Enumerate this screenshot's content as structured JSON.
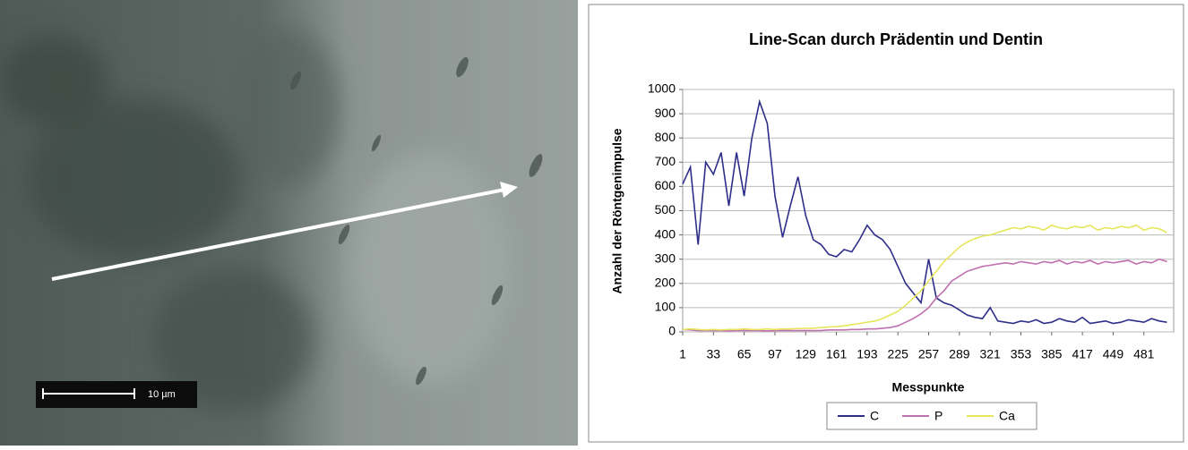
{
  "image": {
    "scale_label": "10 µm"
  },
  "chart_data": {
    "type": "line",
    "title": "Line-Scan durch Prädentin und Dentin",
    "x_label": "Messpunkte",
    "y_label": "Anzahl der Röntgenimpulse",
    "x": [
      1,
      9,
      17,
      25,
      33,
      41,
      49,
      57,
      65,
      73,
      81,
      89,
      97,
      105,
      113,
      121,
      129,
      137,
      145,
      153,
      161,
      169,
      177,
      185,
      193,
      201,
      209,
      217,
      225,
      233,
      241,
      249,
      257,
      265,
      273,
      281,
      289,
      297,
      305,
      313,
      321,
      329,
      337,
      345,
      353,
      361,
      369,
      377,
      385,
      393,
      401,
      409,
      417,
      425,
      433,
      441,
      449,
      457,
      465,
      473,
      481,
      489,
      497,
      505
    ],
    "series": [
      {
        "name": "C",
        "color": "#2e2e8a",
        "values": [
          610,
          680,
          360,
          700,
          650,
          740,
          520,
          740,
          560,
          800,
          950,
          860,
          560,
          390,
          520,
          640,
          480,
          380,
          360,
          320,
          310,
          340,
          330,
          380,
          440,
          400,
          380,
          340,
          270,
          200,
          160,
          120,
          300,
          140,
          120,
          110,
          90,
          70,
          60,
          55,
          100,
          45,
          40,
          35,
          45,
          40,
          50,
          35,
          40,
          55,
          45,
          40,
          60,
          35,
          40,
          45,
          35,
          40,
          50,
          45,
          40,
          55,
          45,
          40
        ]
      },
      {
        "name": "P",
        "color": "#c070b0",
        "values": [
          10,
          8,
          5,
          6,
          5,
          5,
          4,
          5,
          6,
          5,
          5,
          4,
          5,
          6,
          5,
          5,
          6,
          5,
          6,
          8,
          8,
          8,
          10,
          10,
          12,
          12,
          15,
          18,
          25,
          40,
          55,
          75,
          100,
          140,
          170,
          210,
          230,
          250,
          260,
          270,
          275,
          280,
          285,
          280,
          290,
          285,
          280,
          290,
          285,
          295,
          280,
          290,
          285,
          295,
          280,
          290,
          285,
          290,
          295,
          280,
          290,
          285,
          300,
          290
        ]
      },
      {
        "name": "Ca",
        "color": "#e6e65a",
        "values": [
          10,
          12,
          10,
          8,
          10,
          8,
          10,
          10,
          12,
          10,
          10,
          12,
          10,
          12,
          12,
          14,
          15,
          15,
          18,
          20,
          22,
          25,
          30,
          35,
          40,
          45,
          55,
          70,
          85,
          110,
          140,
          170,
          210,
          250,
          290,
          320,
          350,
          370,
          385,
          395,
          400,
          410,
          420,
          430,
          425,
          435,
          430,
          420,
          440,
          430,
          425,
          435,
          430,
          440,
          420,
          430,
          425,
          435,
          430,
          440,
          420,
          430,
          425,
          410
        ]
      }
    ],
    "xlim": [
      1,
      512
    ],
    "ylim": [
      0,
      1000
    ],
    "xticks": [
      1,
      33,
      65,
      97,
      129,
      161,
      193,
      225,
      257,
      289,
      321,
      353,
      385,
      417,
      449,
      481
    ],
    "yticks": [
      0,
      100,
      200,
      300,
      400,
      500,
      600,
      700,
      800,
      900,
      1000
    ],
    "grid": true,
    "legend": "bottom"
  }
}
